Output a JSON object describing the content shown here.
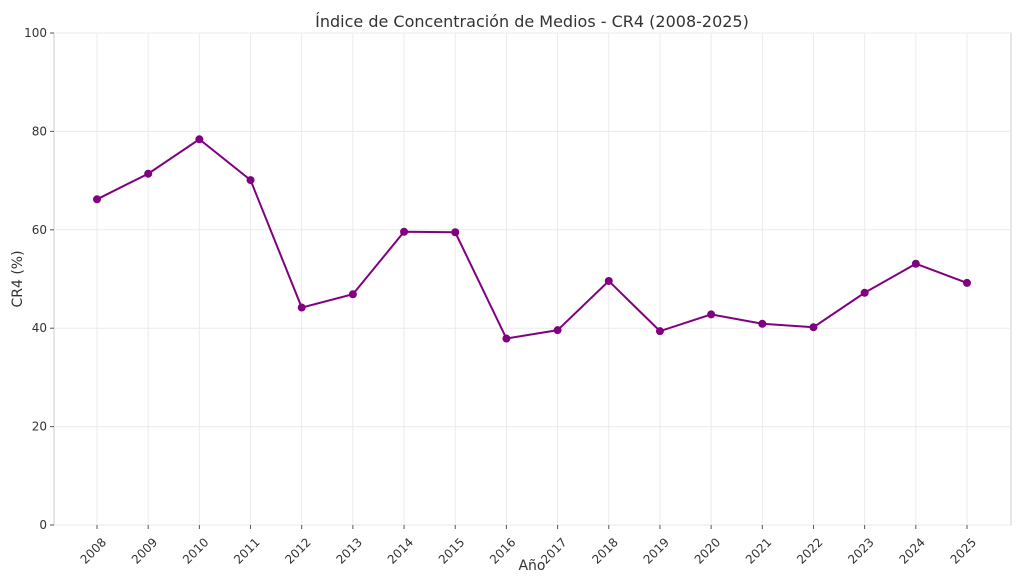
{
  "chart_data": {
    "type": "line",
    "title": "Índice de Concentración de Medios - CR4 (2008-2025)",
    "xlabel": "Año",
    "ylabel": "CR4 (%)",
    "categories": [
      "2008",
      "2009",
      "2010",
      "2011",
      "2012",
      "2013",
      "2014",
      "2015",
      "2016",
      "2017",
      "2018",
      "2019",
      "2020",
      "2021",
      "2022",
      "2023",
      "2024",
      "2025"
    ],
    "series": [
      {
        "values": [
          66.2,
          71.4,
          78.4,
          70.1,
          44.2,
          46.9,
          59.6,
          59.5,
          37.9,
          39.6,
          49.6,
          39.4,
          42.8,
          40.9,
          40.2,
          47.2,
          53.1,
          49.2
        ]
      }
    ],
    "ylim": [
      0,
      100
    ],
    "yticks": [
      0,
      20,
      40,
      60,
      80,
      100
    ],
    "grid": true,
    "line_color": "#800080"
  }
}
